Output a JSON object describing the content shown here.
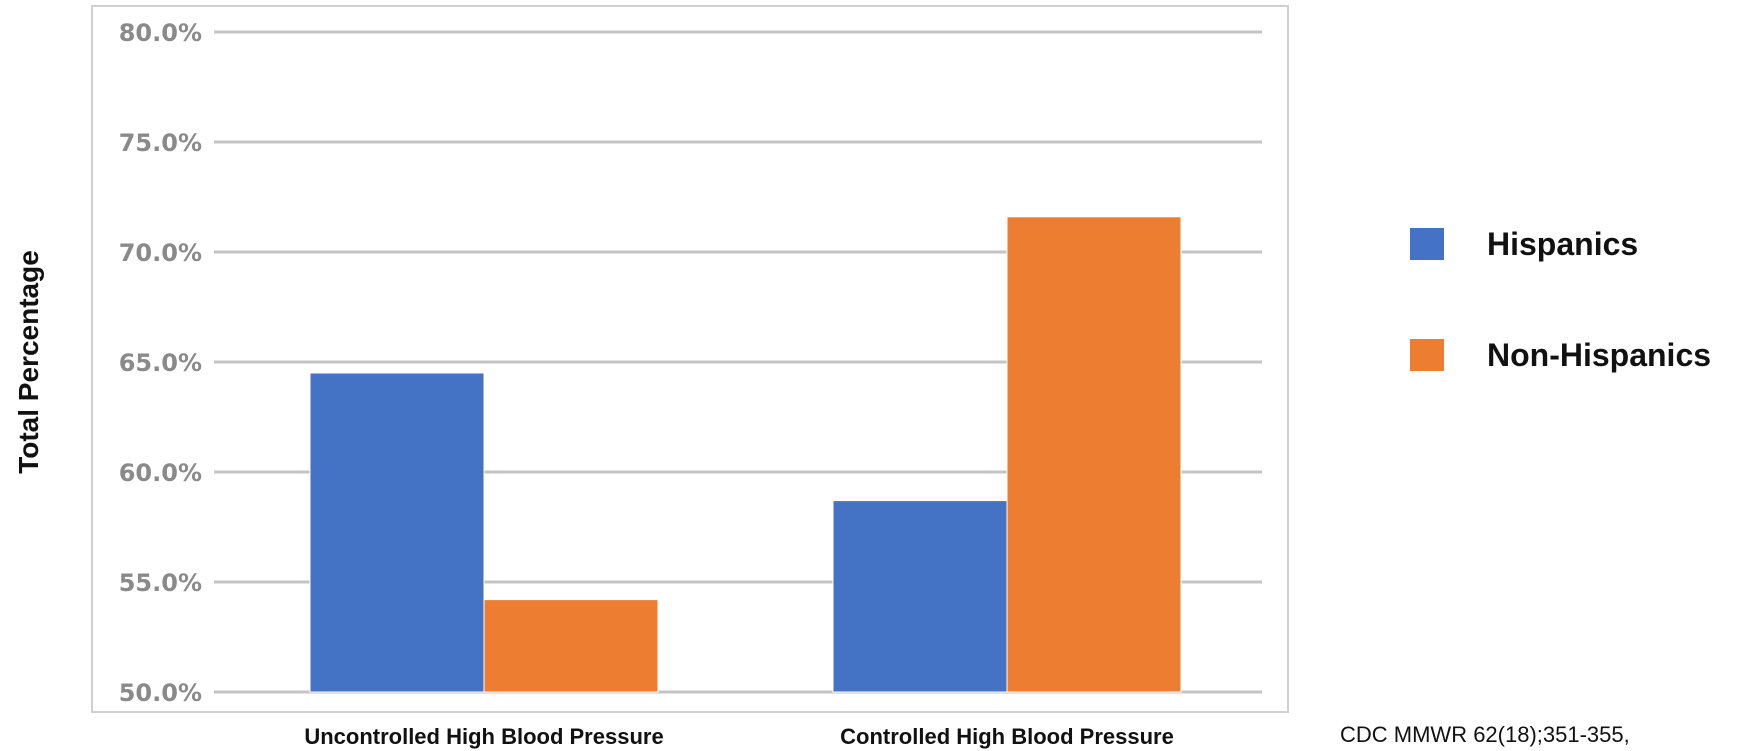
{
  "chart_data": {
    "type": "bar",
    "categories": [
      "Uncontrolled High Blood Pressure",
      "Controlled High Blood Pressure"
    ],
    "series": [
      {
        "name": "Hispanics",
        "values": [
          64.5,
          58.7
        ],
        "color": "#4472c4"
      },
      {
        "name": "Non-Hispanics",
        "values": [
          54.2,
          71.6
        ],
        "color": "#ed7d31"
      }
    ],
    "ylabel": "Total Percentage",
    "ylim": [
      50,
      80
    ],
    "yticks": [
      50,
      55,
      60,
      65,
      70,
      75,
      80
    ],
    "ytick_labels": [
      "50.0%",
      "55.0%",
      "60.0%",
      "65.0%",
      "70.0%",
      "75.0%",
      "80.0%"
    ],
    "grid": true,
    "legend": "right"
  },
  "source": "CDC MMWR  62(18);351-355,"
}
